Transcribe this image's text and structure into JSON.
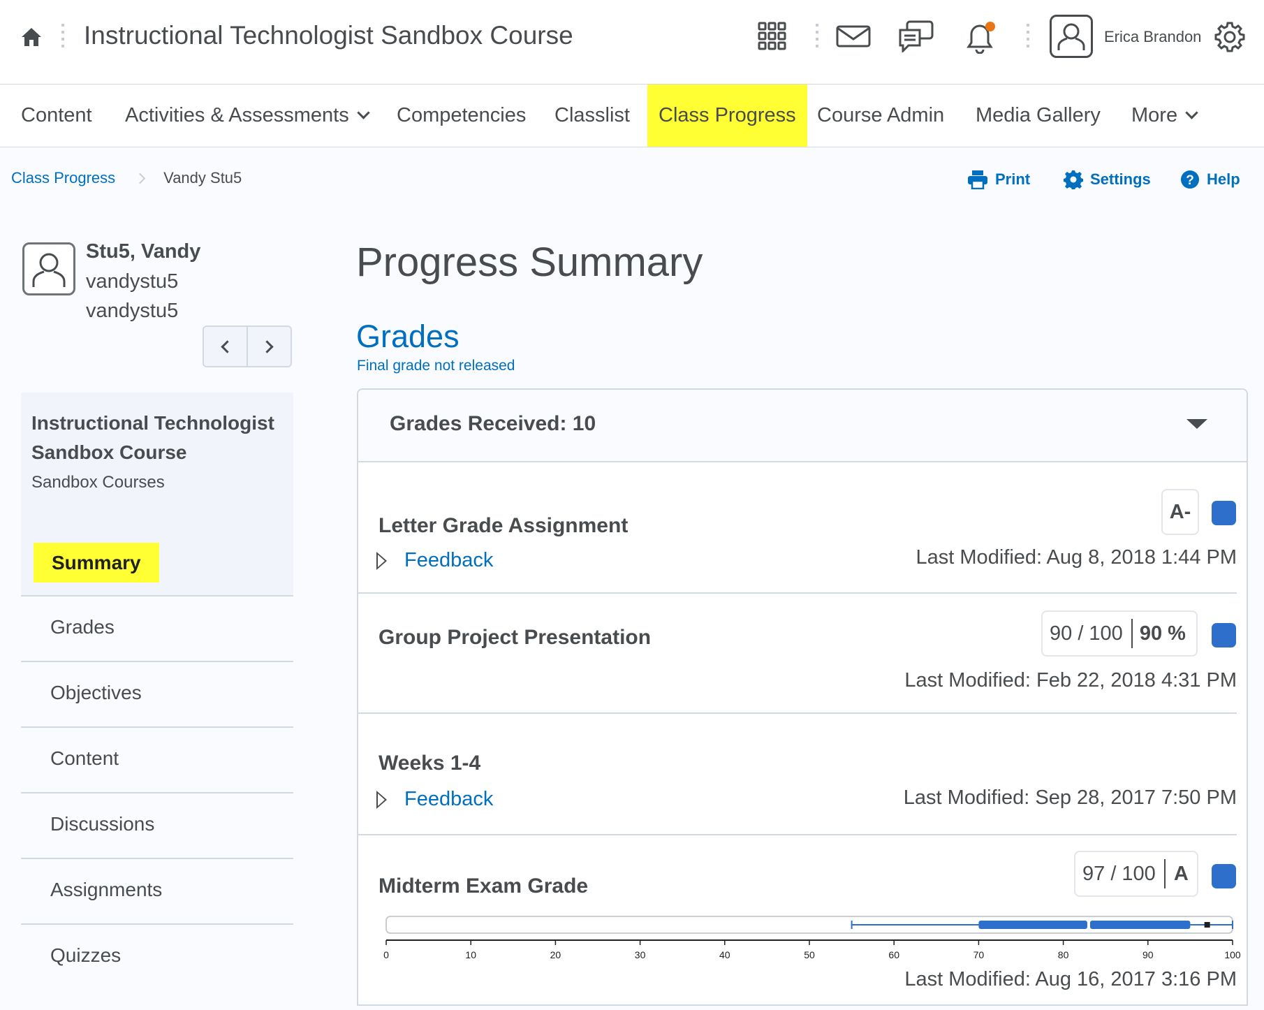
{
  "header": {
    "course_title": "Instructional Technologist Sandbox Course",
    "user_name": "Erica Brandon"
  },
  "nav": {
    "items": [
      {
        "label": "Content"
      },
      {
        "label": "Activities & Assessments"
      },
      {
        "label": "Competencies"
      },
      {
        "label": "Classlist"
      },
      {
        "label": "Class Progress"
      },
      {
        "label": "Course Admin"
      },
      {
        "label": "Media Gallery"
      },
      {
        "label": "More"
      }
    ],
    "active": "Class Progress"
  },
  "breadcrumb": {
    "root": "Class Progress",
    "current": "Vandy Stu5"
  },
  "tools": {
    "print": "Print",
    "settings": "Settings",
    "help": "Help"
  },
  "student": {
    "name": "Stu5, Vandy",
    "username": "vandystu5",
    "org_id": "vandystu5"
  },
  "course_panel": {
    "title_line1": "Instructional Technologist",
    "title_line2": "Sandbox Course",
    "subtitle": "Sandbox Courses"
  },
  "side_menu": [
    {
      "label": "Summary"
    },
    {
      "label": "Grades"
    },
    {
      "label": "Objectives"
    },
    {
      "label": "Content"
    },
    {
      "label": "Discussions"
    },
    {
      "label": "Assignments"
    },
    {
      "label": "Quizzes"
    }
  ],
  "main": {
    "title": "Progress Summary",
    "grades_heading": "Grades",
    "grades_status": "Final grade not released",
    "grades_received": "Grades Received: 10",
    "feedback_label": "Feedback",
    "items": [
      {
        "title": "Letter Grade Assignment",
        "grade": "A-",
        "last_modified": "Last Modified: Aug 8, 2018 1:44 PM"
      },
      {
        "title": "Group Project Presentation",
        "score": "90 / 100",
        "percent": "90 %",
        "last_modified": "Last Modified: Feb 22, 2018 4:31 PM"
      },
      {
        "title": "Weeks 1-4",
        "last_modified": "Last Modified: Sep 28, 2017 7:50 PM"
      },
      {
        "title": "Midterm Exam Grade",
        "score": "97 / 100",
        "grade": "A",
        "last_modified": "Last Modified: Aug 16, 2017 3:16 PM"
      }
    ],
    "distribution": {
      "ticks": [
        "0",
        "10",
        "20",
        "30",
        "40",
        "50",
        "60",
        "70",
        "80",
        "90",
        "100"
      ],
      "min": 55,
      "q1": 70,
      "median": 83,
      "q3": 95,
      "max": 100,
      "student": 97
    }
  },
  "colors": {
    "accent": "#006fbf",
    "highlight": "#ffff33",
    "grade_square": "#2e6fcb"
  }
}
